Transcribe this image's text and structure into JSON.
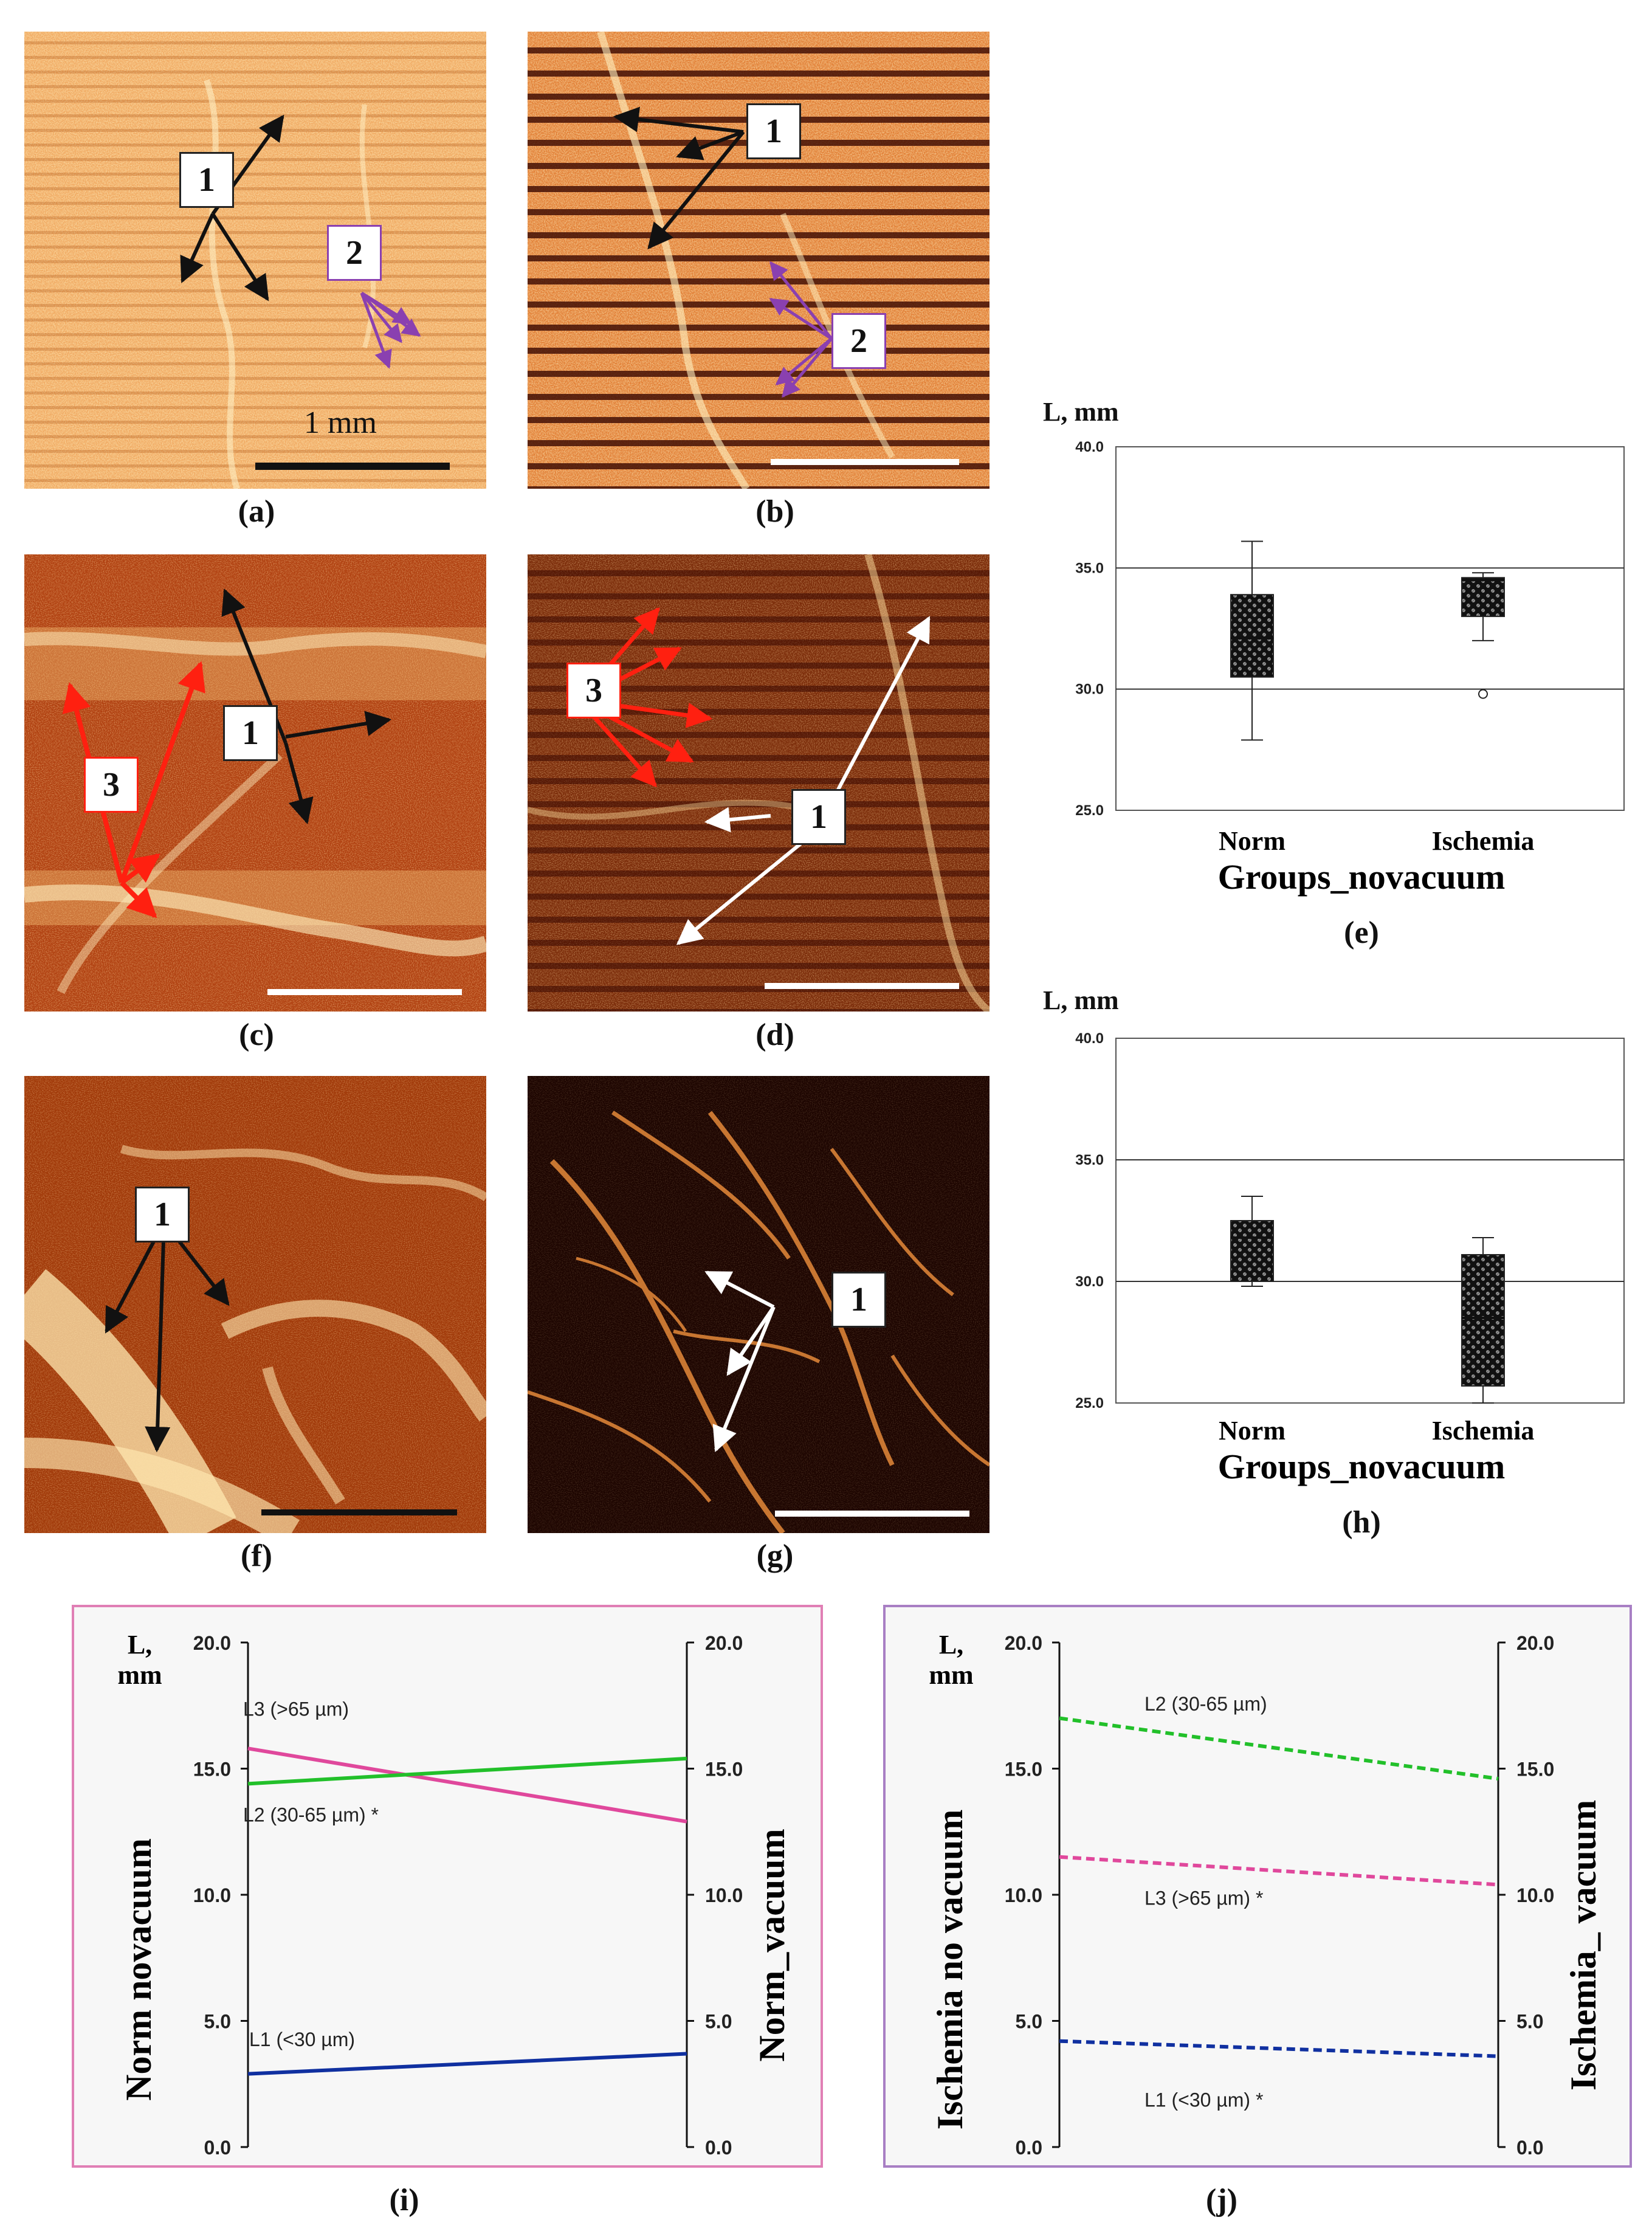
{
  "panels": {
    "a": "(a)",
    "b": "(b)",
    "c": "(c)",
    "d": "(d)",
    "e": "(e)",
    "f": "(f)",
    "g": "(g)",
    "h": "(h)",
    "i": "(i)",
    "j": "(j)"
  },
  "labels": {
    "a_1": "1",
    "a_2": "2",
    "b_1": "1",
    "b_2": "2",
    "c_1": "1",
    "c_3": "3",
    "d_1": "1",
    "d_3": "3",
    "f_1": "1",
    "g_1": "1",
    "scale": "1 mm"
  },
  "colors": {
    "teal_box": "#2ec4c4",
    "pink_box": "#f06aa8",
    "green_line": "#22c02a",
    "pink_line": "#e0489c",
    "blue_line": "#1030a0",
    "frame_i": "#e07fb5",
    "frame_j": "#a87fc4"
  },
  "chart_data": [
    {
      "id": "e",
      "type": "box",
      "ylabel": "L, mm",
      "xlabel": "Groups_novacuum",
      "ylim": [
        25.0,
        40.0
      ],
      "yticks": [
        "25.0",
        "30.0",
        "35.0",
        "40.0"
      ],
      "categories": [
        "Norm",
        "Ischemia"
      ],
      "boxes": [
        {
          "min": 27.9,
          "q1": 30.5,
          "median": 32.1,
          "q3": 33.9,
          "max": 36.1,
          "outliers": []
        },
        {
          "min": 32.0,
          "q1": 33.0,
          "median": 34.5,
          "q3": 34.6,
          "max": 34.8,
          "outliers": [
            29.8
          ]
        }
      ]
    },
    {
      "id": "h",
      "type": "box",
      "ylabel": "L, mm",
      "xlabel": "Groups_novacuum",
      "ylim": [
        25.0,
        40.0
      ],
      "yticks": [
        "25.0",
        "30.0",
        "35.0",
        "40.0"
      ],
      "categories": [
        "Norm",
        "Ischemia"
      ],
      "boxes": [
        {
          "min": 29.8,
          "q1": 30.0,
          "median": 31.8,
          "q3": 32.5,
          "max": 33.5,
          "outliers": []
        },
        {
          "min": 25.0,
          "q1": 25.7,
          "median": 28.5,
          "q3": 31.1,
          "max": 31.8,
          "outliers": []
        }
      ]
    },
    {
      "id": "i",
      "type": "line",
      "ylabel_left": "Norm  novacuum",
      "ylabel_right": "Norm_vacuum",
      "yunit": "L,\nmm",
      "yunit_1": "L,",
      "yunit_2": "mm",
      "ylim": [
        0.0,
        20.0
      ],
      "yticks": [
        "0.0",
        "5.0",
        "10.0",
        "15.0",
        "20.0"
      ],
      "series": [
        {
          "name": "L3 (>65 µm)",
          "values": [
            15.8,
            12.9
          ],
          "style": "solid"
        },
        {
          "name": "L2 (30-65 µm) *",
          "values": [
            14.4,
            15.4
          ],
          "style": "solid"
        },
        {
          "name": "L1 (<30 µm)",
          "values": [
            2.9,
            3.7
          ],
          "style": "solid"
        }
      ]
    },
    {
      "id": "j",
      "type": "line",
      "ylabel_left": "Ischemia  no vacuum",
      "ylabel_right": "Ischemia_ vacuum",
      "yunit_1": "L,",
      "yunit_2": "mm",
      "ylim": [
        0.0,
        20.0
      ],
      "yticks": [
        "0.0",
        "5.0",
        "10.0",
        "15.0",
        "20.0"
      ],
      "series": [
        {
          "name": "L2 (30-65 µm)",
          "values": [
            17.0,
            14.6
          ],
          "style": "dashed"
        },
        {
          "name": "L3 (>65 µm) *",
          "values": [
            11.5,
            10.4
          ],
          "style": "dashed"
        },
        {
          "name": "L1 (<30 µm) *",
          "values": [
            4.2,
            3.6
          ],
          "style": "dashed"
        }
      ]
    }
  ]
}
